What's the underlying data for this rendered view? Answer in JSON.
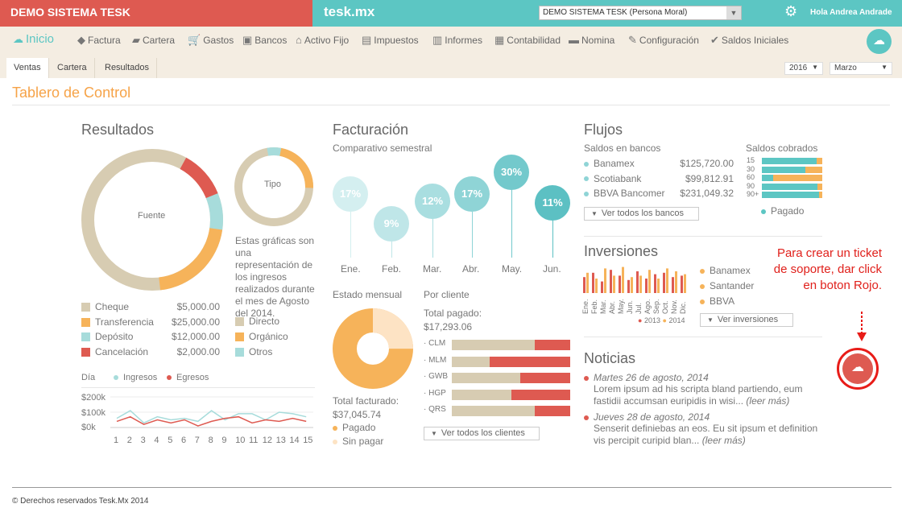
{
  "header": {
    "company_title": "DEMO SISTEMA TESK",
    "brand": "tesk.mx",
    "company_select": "DEMO SISTEMA TESK (Persona Moral)",
    "user_greeting": "Hola Andrea Andrade"
  },
  "nav": {
    "home": "Inicio",
    "items": [
      "Factura",
      "Cartera",
      "Gastos",
      "Bancos",
      "Activo Fijo",
      "Impuestos",
      "Informes",
      "Contabilidad",
      "Nomina",
      "Configuración",
      "Saldos Iniciales"
    ]
  },
  "tabs": [
    "Ventas",
    "Cartera",
    "Resultados"
  ],
  "filters": {
    "year": "2016",
    "month": "Marzo"
  },
  "page_title": "Tablero de Control",
  "resultados": {
    "title": "Resultados",
    "donut_center": "Fuente",
    "small_donut_center": "Tipo",
    "note": "Estas gráficas son una representación de los ingresos realizados durante el mes de Agosto del 2014.",
    "fuente": [
      {
        "label": "Cheque",
        "amount": "$5,000.00",
        "color": "#d7ccb2"
      },
      {
        "label": "Transferencia",
        "amount": "$25,000.00",
        "color": "#f6b35a"
      },
      {
        "label": "Depósito",
        "amount": "$12,000.00",
        "color": "#a7dcdb"
      },
      {
        "label": "Cancelación",
        "amount": "$2,000.00",
        "color": "#de5a51"
      }
    ],
    "tipo": [
      {
        "label": "Directo",
        "color": "#d7ccb2"
      },
      {
        "label": "Orgánico",
        "color": "#f6b35a"
      },
      {
        "label": "Otros",
        "color": "#a7dcdb"
      }
    ]
  },
  "dia_chart": {
    "title": "Día",
    "legend": [
      {
        "label": "Ingresos",
        "color": "#a7dcdb"
      },
      {
        "label": "Egresos",
        "color": "#de5a51"
      }
    ],
    "yticks": [
      "$200k",
      "$100k",
      "$0k"
    ],
    "x": [
      "1",
      "2",
      "3",
      "4",
      "5",
      "6",
      "7",
      "8",
      "9",
      "10",
      "11",
      "12",
      "13",
      "14",
      "15"
    ],
    "ingresos": [
      60,
      110,
      30,
      70,
      50,
      60,
      40,
      110,
      50,
      90,
      90,
      50,
      100,
      90,
      70
    ],
    "egresos": [
      40,
      70,
      20,
      50,
      30,
      50,
      10,
      40,
      60,
      70,
      30,
      50,
      40,
      60,
      40
    ]
  },
  "facturacion": {
    "title": "Facturación",
    "subtitle": "Comparativo semestral",
    "months": [
      "Ene.",
      "Feb.",
      "Mar.",
      "Abr.",
      "May.",
      "Jun."
    ],
    "values": [
      "17%",
      "9%",
      "12%",
      "17%",
      "30%",
      "11%"
    ],
    "estado_title": "Estado mensual",
    "total_facturado_label": "Total facturado:",
    "total_facturado": "$37,045.74",
    "pagado": "Pagado",
    "sin_pagar": "Sin pagar",
    "cliente_title": "Por cliente",
    "total_pagado_label": "Total pagado:",
    "total_pagado": "$17,293.06",
    "clientes": [
      {
        "code": "· CLM",
        "paid": 0.7
      },
      {
        "code": "· MLM",
        "paid": 0.32
      },
      {
        "code": "· GWB",
        "paid": 0.58
      },
      {
        "code": "· HGP",
        "paid": 0.5
      },
      {
        "code": "· QRS",
        "paid": 0.7
      }
    ],
    "ver_clientes": "Ver todos los clientes"
  },
  "flujos": {
    "title": "Flujos",
    "saldos_title": "Saldos en bancos",
    "bancos": [
      {
        "name": "Banamex",
        "amount": "$125,720.00"
      },
      {
        "name": "Scotiabank",
        "amount": "$99,812.91"
      },
      {
        "name": "BBVA Bancomer",
        "amount": "$231,049.32"
      }
    ],
    "ver_bancos": "Ver todos los bancos",
    "cobrados_title": "Saldos cobrados",
    "cobrados_rows": [
      {
        "label": "15",
        "paid": 0.9
      },
      {
        "label": "30",
        "paid": 0.72
      },
      {
        "label": "60",
        "paid": 0.18
      },
      {
        "label": "90",
        "paid": 0.92
      },
      {
        "label": "90+",
        "paid": 0.95
      }
    ],
    "pagado_label": "Pagado"
  },
  "inversiones": {
    "title": "Inversiones",
    "months": [
      "Ene.",
      "Feb.",
      "Mar.",
      "Abr.",
      "May.",
      "Jun.",
      "Jul.",
      "Ago.",
      "Sep.",
      "Oct.",
      "Nov.",
      "Dic."
    ],
    "values_2013": [
      55,
      70,
      40,
      80,
      60,
      45,
      75,
      50,
      65,
      70,
      55,
      60
    ],
    "values_2014": [
      70,
      50,
      85,
      60,
      90,
      55,
      60,
      80,
      50,
      85,
      75,
      65
    ],
    "legend_years": [
      "2013",
      "2014"
    ],
    "fondos": [
      "Banamex",
      "Santander",
      "BBVA"
    ],
    "ver": "Ver inversiones"
  },
  "noticias": {
    "title": "Noticias",
    "items": [
      {
        "date": "Martes 26 de agosto, 2014",
        "text": "Lorem ipsum ad his scripta bland partiendo, eum fastidii accumsan euripidis in wisi...",
        "more": "(leer más)"
      },
      {
        "date": "Jueves 28 de agosto, 2014",
        "text": "Senserit definiebas an eos. Eu sit ipsum et definition vis percipit curipid blan...",
        "more": "(leer más)"
      }
    ]
  },
  "annotation": "Para crear un ticket de soporte, dar click en boton Rojo.",
  "footer": "© Derechos reservados Tesk.Mx 2014",
  "colors": {
    "red": "#de5a51",
    "teal": "#5cc6c3",
    "orange": "#f6a348",
    "beige": "#f4ede2"
  }
}
